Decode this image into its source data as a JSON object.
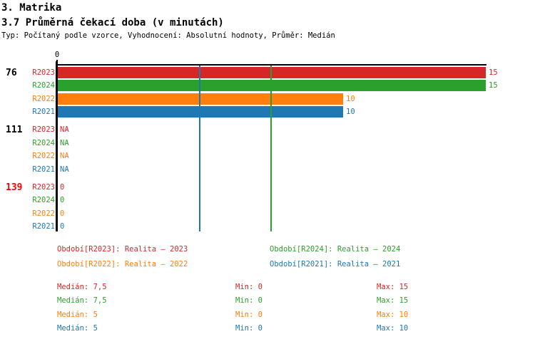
{
  "header": {
    "title": "3. Matrika",
    "subtitle": "3.7 Průměrná čekací doba (v minutách)",
    "meta": "Typ: Počítaný podle vzorce, Vyhodnocení: Absolutní hodnoty, Průměr: Medián"
  },
  "colors": {
    "red_series": "#d62728",
    "green_series": "#2ca02c",
    "orange_series": "#ff7f0e",
    "blue_series": "#1f77b4",
    "highlight_group_label": "#ff0000",
    "axis": "#000000"
  },
  "chart_data": {
    "type": "bar",
    "orientation": "horizontal",
    "title": "3.7 Průměrná čekací doba (v minutách)",
    "xlim": [
      0,
      15
    ],
    "x_ticks": [
      {
        "value": 0,
        "label": "0"
      }
    ],
    "grid": false,
    "series": [
      "R2023",
      "R2024",
      "R2022",
      "R2021"
    ],
    "series_colors": {
      "R2023": "#d62728",
      "R2024": "#2ca02c",
      "R2022": "#ff7f0e",
      "R2021": "#1f77b4"
    },
    "groups": [
      {
        "label": "76",
        "label_color": "#000000",
        "rows": [
          {
            "series": "R2023",
            "value": 15,
            "display": "15"
          },
          {
            "series": "R2024",
            "value": 15,
            "display": "15"
          },
          {
            "series": "R2022",
            "value": 10,
            "display": "10"
          },
          {
            "series": "R2021",
            "value": 10,
            "display": "10"
          }
        ]
      },
      {
        "label": "111",
        "label_color": "#000000",
        "rows": [
          {
            "series": "R2023",
            "value": null,
            "display": "NA"
          },
          {
            "series": "R2024",
            "value": null,
            "display": "NA"
          },
          {
            "series": "R2022",
            "value": null,
            "display": "NA"
          },
          {
            "series": "R2021",
            "value": null,
            "display": "NA"
          }
        ]
      },
      {
        "label": "139",
        "label_color": "#ff0000",
        "rows": [
          {
            "series": "R2023",
            "value": 0,
            "display": "0"
          },
          {
            "series": "R2024",
            "value": 0,
            "display": "0"
          },
          {
            "series": "R2022",
            "value": 0,
            "display": "0"
          },
          {
            "series": "R2021",
            "value": 0,
            "display": "0"
          }
        ]
      }
    ],
    "reference_lines": [
      {
        "series": "R2024",
        "value": 7.5,
        "color": "#2ca02c"
      },
      {
        "series": "R2021",
        "value": 5,
        "color": "#1f77b4"
      }
    ]
  },
  "legend": {
    "items": [
      {
        "text": "Období[R2023]: Realita – 2023",
        "color": "#d62728",
        "row": 0,
        "col": 0
      },
      {
        "text": "Období[R2024]: Realita – 2024",
        "color": "#2ca02c",
        "row": 0,
        "col": 1
      },
      {
        "text": "Období[R2022]: Realita – 2022",
        "color": "#ff7f0e",
        "row": 1,
        "col": 0
      },
      {
        "text": "Období[R2021]: Realita – 2021",
        "color": "#1f77b4",
        "row": 1,
        "col": 1
      }
    ]
  },
  "stats": {
    "rows": [
      {
        "color": "#d62728",
        "median": "Medián: 7,5",
        "min": "Min: 0",
        "max": "Max: 15"
      },
      {
        "color": "#2ca02c",
        "median": "Medián: 7,5",
        "min": "Min: 0",
        "max": "Max: 15"
      },
      {
        "color": "#ff7f0e",
        "median": "Medián: 5",
        "min": "Min: 0",
        "max": "Max: 10"
      },
      {
        "color": "#1f77b4",
        "median": "Medián: 5",
        "min": "Min: 0",
        "max": "Max: 10"
      }
    ]
  }
}
